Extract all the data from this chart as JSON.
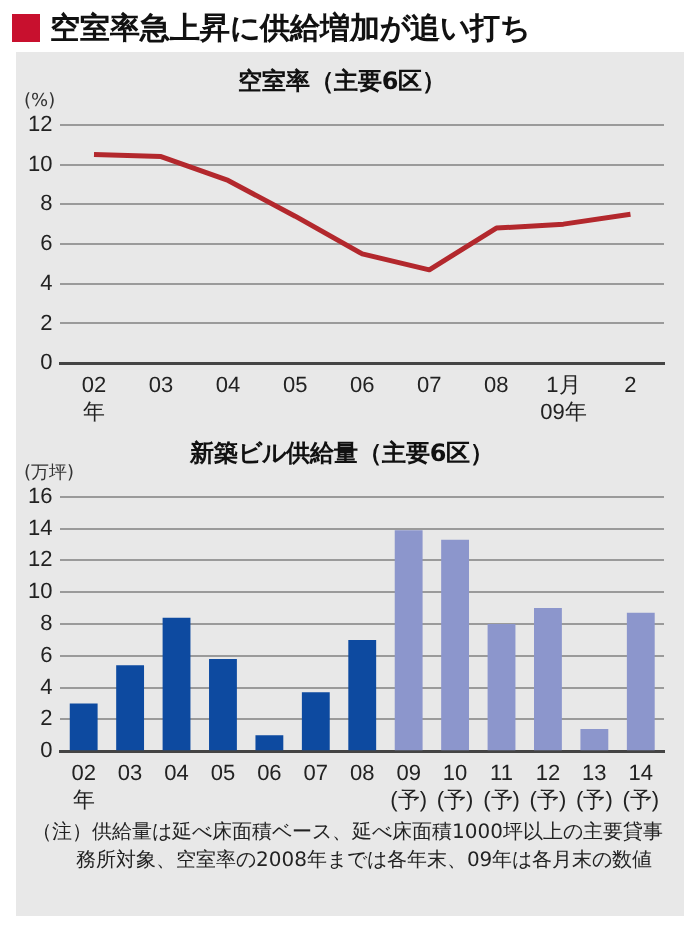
{
  "chart_data": [
    {
      "type": "line",
      "title": "空室率急上昇に供給増加が追い打ち",
      "subtitle": "空室率（主要6区）",
      "ylabel": "(%)",
      "categories": [
        "02\n年",
        "03",
        "04",
        "05",
        "06",
        "07",
        "08",
        "1月\n09年",
        "2"
      ],
      "values": [
        10.5,
        10.4,
        9.2,
        7.4,
        5.5,
        4.7,
        6.8,
        7.0,
        7.5
      ],
      "color": "#b3282d",
      "marker": "none",
      "ylim": [
        0,
        12
      ],
      "yticks": [
        0,
        2,
        4,
        6,
        8,
        10,
        12
      ],
      "grid": "y"
    },
    {
      "type": "bar",
      "title": "新築ビル供給量（主要6区）",
      "ylabel": "(万坪)",
      "categories": [
        "02\n年",
        "03",
        "04",
        "05",
        "06",
        "07",
        "08",
        "09\n(予)",
        "10\n(予)",
        "11\n(予)",
        "12\n(予)",
        "13\n(予)",
        "14\n(予)"
      ],
      "values": [
        3.0,
        5.4,
        8.4,
        5.8,
        1.0,
        3.7,
        7.0,
        13.9,
        13.3,
        8.0,
        9.0,
        1.4,
        8.7
      ],
      "colors": [
        "#0d4aa0",
        "#0d4aa0",
        "#0d4aa0",
        "#0d4aa0",
        "#0d4aa0",
        "#0d4aa0",
        "#0d4aa0",
        "#8c96cc",
        "#8c96cc",
        "#8c96cc",
        "#8c96cc",
        "#8c96cc",
        "#8c96cc"
      ],
      "ylim": [
        0,
        16
      ],
      "yticks": [
        0,
        2,
        4,
        6,
        8,
        10,
        12,
        14,
        16
      ],
      "grid": "y",
      "annotations": [
        "（注）供給量は延べ床面積ベース、延べ床面積1000坪以上の主要貸事務所対象、空室率の2008年までは各年末、09年は各月末の数値"
      ]
    }
  ]
}
